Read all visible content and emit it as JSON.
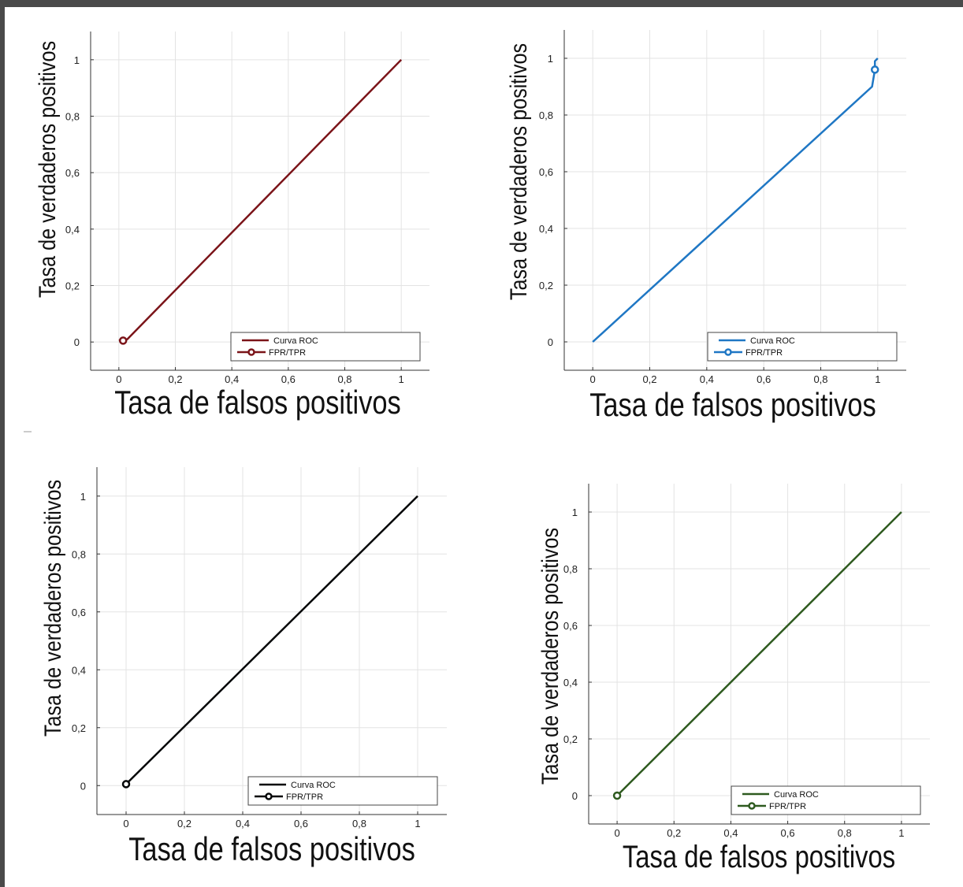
{
  "chart_data": [
    {
      "type": "line",
      "xlabel": "Tasa de falsos positivos",
      "ylabel": "Tasa de verdaderos positivos",
      "xlim": [
        -0.1,
        1.1
      ],
      "ylim": [
        -0.1,
        1.1
      ],
      "xticks": [
        "0",
        "0,2",
        "0,4",
        "0,6",
        "0,8",
        "1"
      ],
      "yticks": [
        "0",
        "0,2",
        "0,4",
        "0,6",
        "0,8",
        "1"
      ],
      "grid": true,
      "legend": "bottom-right",
      "color": "#7b1419",
      "series": [
        {
          "name": "Curva ROC",
          "x": [
            0,
            0.03,
            1
          ],
          "y": [
            0.005,
            0.01,
            1
          ]
        },
        {
          "name": "FPR/TPR",
          "marker": true,
          "x": [
            0.015
          ],
          "y": [
            0.005
          ]
        }
      ]
    },
    {
      "type": "line",
      "xlabel": "Tasa de falsos positivos",
      "ylabel": "Tasa de verdaderos positivos",
      "xlim": [
        -0.1,
        1.1
      ],
      "ylim": [
        -0.1,
        1.1
      ],
      "xticks": [
        "0",
        "0,2",
        "0,4",
        "0,6",
        "0,8",
        "1"
      ],
      "yticks": [
        "0",
        "0,2",
        "0,4",
        "0,6",
        "0,8",
        "1"
      ],
      "grid": true,
      "legend": "bottom-right",
      "color": "#1f77c4",
      "series": [
        {
          "name": "Curva ROC",
          "x": [
            0,
            0.98,
            0.99,
            0.99,
            1
          ],
          "y": [
            0,
            0.9,
            0.96,
            0.99,
            1
          ]
        },
        {
          "name": "FPR/TPR",
          "marker": true,
          "x": [
            0.99
          ],
          "y": [
            0.96
          ]
        }
      ]
    },
    {
      "type": "line",
      "xlabel": "Tasa de falsos positivos",
      "ylabel": "Tasa de verdaderos positivos",
      "xlim": [
        -0.1,
        1.1
      ],
      "ylim": [
        -0.1,
        1.1
      ],
      "xticks": [
        "0",
        "0,2",
        "0,4",
        "0,6",
        "0,8",
        "1"
      ],
      "yticks": [
        "0",
        "0,2",
        "0,4",
        "0,6",
        "0,8",
        "1"
      ],
      "grid": true,
      "legend": "bottom-right",
      "color": "#050708",
      "series": [
        {
          "name": "Curva ROC",
          "x": [
            0,
            1
          ],
          "y": [
            0.005,
            1
          ]
        },
        {
          "name": "FPR/TPR",
          "marker": true,
          "x": [
            0
          ],
          "y": [
            0.005
          ]
        }
      ]
    },
    {
      "type": "line",
      "xlabel": "Tasa de falsos positivos",
      "ylabel": "Tasa de verdaderos positivos",
      "xlim": [
        -0.1,
        1.1
      ],
      "ylim": [
        -0.1,
        1.1
      ],
      "xticks": [
        "0",
        "0,2",
        "0,4",
        "0,6",
        "0,8",
        "1"
      ],
      "yticks": [
        "0",
        "0,2",
        "0,4",
        "0,6",
        "0,8",
        "1"
      ],
      "grid": true,
      "legend": "bottom-right",
      "color": "#2e5a1f",
      "series": [
        {
          "name": "Curva ROC",
          "x": [
            0,
            1
          ],
          "y": [
            0,
            1
          ]
        },
        {
          "name": "FPR/TPR",
          "marker": true,
          "x": [
            0
          ],
          "y": [
            0
          ]
        }
      ]
    }
  ]
}
